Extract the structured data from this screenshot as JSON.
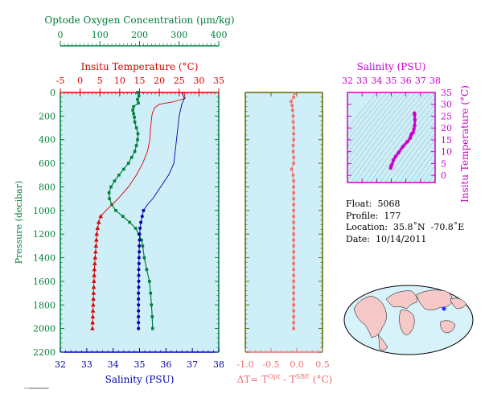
{
  "colors": {
    "oxygen": "#00803a",
    "temperature": "#dd0000",
    "salinity": "#0000aa",
    "delta": "#f07070",
    "inset": "#cc00cc",
    "panel_bg": "#cfeff8",
    "delta_axis": "#666600"
  },
  "chart_data": [
    {
      "type": "line",
      "panel": "profiles",
      "ylabel": "Pressure (decibar)",
      "ylim": [
        2200,
        0
      ],
      "yticks": [
        "0",
        "200",
        "400",
        "600",
        "800",
        "1000",
        "1200",
        "1400",
        "1600",
        "1800",
        "2000",
        "2200"
      ],
      "axes": {
        "oxygen": {
          "label": "Optode Oxygen Concentration (μm/kg)",
          "lim": [
            0,
            400
          ],
          "ticks": [
            "0",
            "100",
            "200",
            "300",
            "400"
          ]
        },
        "temperature": {
          "label": "Insitu Temperature (°C)",
          "lim": [
            -5,
            35
          ],
          "ticks": [
            "-5",
            "0",
            "5",
            "10",
            "15",
            "20",
            "25",
            "30",
            "35"
          ]
        },
        "salinity": {
          "label": "Salinity (PSU)",
          "lim": [
            32,
            38
          ],
          "ticks": [
            "32",
            "33",
            "34",
            "35",
            "36",
            "37",
            "38"
          ]
        }
      },
      "series": [
        {
          "key": "oxygen",
          "axis": "oxygen",
          "p": [
            0,
            30,
            60,
            90,
            120,
            150,
            180,
            210,
            250,
            300,
            350,
            400,
            450,
            500,
            550,
            600,
            650,
            700,
            750,
            800,
            850,
            900,
            950,
            1000,
            1050,
            1100,
            1150,
            1200,
            1250,
            1300,
            1400,
            1500,
            1600,
            1700,
            1800,
            1900,
            2000
          ],
          "values": [
            195,
            198,
            195,
            197,
            185,
            183,
            185,
            187,
            188,
            192,
            196,
            195,
            192,
            188,
            180,
            172,
            160,
            148,
            137,
            128,
            123,
            124,
            130,
            140,
            158,
            175,
            190,
            198,
            205,
            208,
            212,
            218,
            225,
            228,
            230,
            232,
            233
          ]
        },
        {
          "key": "temperature",
          "axis": "temperature",
          "p": [
            0,
            50,
            80,
            100,
            130,
            170,
            200,
            300,
            400,
            500,
            600,
            700,
            800,
            900,
            1000,
            1050,
            1100,
            1200,
            1300,
            1400,
            1500,
            1600,
            1700,
            1800,
            1900,
            2000
          ],
          "values": [
            26.3,
            26.5,
            23.5,
            20.0,
            18.8,
            18.3,
            18.1,
            17.8,
            17.6,
            17.0,
            15.8,
            14.2,
            12.2,
            9.6,
            6.5,
            5.2,
            4.7,
            4.2,
            4.0,
            3.8,
            3.6,
            3.5,
            3.4,
            3.3,
            3.2,
            3.1
          ]
        },
        {
          "key": "temperature_markers",
          "axis": "temperature",
          "markers_only": true,
          "p": [
            1050,
            1100,
            1150,
            1200,
            1250,
            1300,
            1350,
            1400,
            1450,
            1500,
            1550,
            1600,
            1650,
            1700,
            1750,
            1800,
            1850,
            1900,
            1950,
            2000
          ],
          "values": [
            5.2,
            4.7,
            4.4,
            4.2,
            4.1,
            4.0,
            3.9,
            3.8,
            3.7,
            3.6,
            3.55,
            3.5,
            3.45,
            3.4,
            3.35,
            3.3,
            3.25,
            3.2,
            3.15,
            3.1
          ]
        },
        {
          "key": "salinity",
          "axis": "salinity",
          "p": [
            0,
            50,
            100,
            200,
            300,
            400,
            500,
            600,
            700,
            800,
            900,
            950,
            1000,
            1100,
            1200,
            1300,
            1400,
            1500,
            1600,
            1700,
            1800,
            1900,
            2000
          ],
          "values": [
            36.6,
            36.7,
            36.6,
            36.5,
            36.45,
            36.4,
            36.35,
            36.3,
            36.1,
            35.8,
            35.5,
            35.3,
            35.15,
            35.05,
            35.0,
            34.99,
            34.98,
            34.97,
            34.97,
            34.96,
            34.96,
            34.96,
            34.96
          ]
        },
        {
          "key": "salinity_markers",
          "axis": "salinity",
          "markers_only": true,
          "p": [
            1000,
            1050,
            1100,
            1150,
            1200,
            1250,
            1300,
            1350,
            1400,
            1450,
            1500,
            1550,
            1600,
            1650,
            1700,
            1750,
            1800,
            1850,
            1900,
            1950,
            2000
          ],
          "values": [
            35.15,
            35.1,
            35.05,
            35.02,
            35.0,
            35.0,
            34.99,
            34.99,
            34.98,
            34.98,
            34.97,
            34.97,
            34.97,
            34.97,
            34.96,
            34.96,
            34.96,
            34.96,
            34.96,
            34.96,
            34.96
          ]
        }
      ]
    },
    {
      "type": "scatter",
      "panel": "delta",
      "xlabel_parts": [
        "ΔT= T",
        "Opt",
        " - T",
        "SBE",
        " (°C)"
      ],
      "xlim": [
        -1.0,
        0.5
      ],
      "xticks": [
        "-1.0",
        "-0.5",
        "0.0",
        "0.5"
      ],
      "ylim": [
        2200,
        0
      ],
      "p": [
        5,
        40,
        75,
        110,
        150,
        200,
        250,
        300,
        350,
        400,
        450,
        500,
        550,
        600,
        650,
        700,
        750,
        800,
        850,
        900,
        950,
        1000,
        1050,
        1100,
        1150,
        1200,
        1250,
        1300,
        1350,
        1400,
        1450,
        1500,
        1550,
        1600,
        1650,
        1700,
        1750,
        1800,
        1850,
        1900,
        1950,
        2000
      ],
      "values": [
        -0.04,
        -0.06,
        -0.11,
        -0.09,
        -0.08,
        -0.07,
        -0.07,
        -0.06,
        -0.06,
        -0.06,
        -0.07,
        -0.07,
        -0.06,
        -0.06,
        -0.1,
        -0.07,
        -0.06,
        -0.06,
        -0.06,
        -0.06,
        -0.06,
        -0.06,
        -0.06,
        -0.06,
        -0.06,
        -0.06,
        -0.06,
        -0.06,
        -0.06,
        -0.06,
        -0.06,
        -0.06,
        -0.06,
        -0.06,
        -0.06,
        -0.06,
        -0.06,
        -0.06,
        -0.06,
        -0.06,
        -0.06,
        -0.06
      ]
    },
    {
      "type": "scatter",
      "panel": "ts",
      "xlabel": "Salinity (PSU)",
      "ylabel": "Insitu Temperature (°C)",
      "xlim": [
        32,
        38
      ],
      "ylim": [
        -3,
        35
      ],
      "xticks": [
        "32",
        "33",
        "34",
        "35",
        "36",
        "37",
        "38"
      ],
      "yticks": [
        "0",
        "5",
        "10",
        "15",
        "20",
        "25",
        "30",
        "35"
      ],
      "x": [
        34.96,
        34.97,
        34.99,
        35.05,
        35.15,
        35.3,
        35.5,
        35.8,
        36.1,
        36.3,
        36.35,
        36.4,
        36.45,
        36.5,
        36.55,
        36.6,
        36.62,
        36.6,
        36.58
      ],
      "y": [
        3.1,
        3.5,
        4.0,
        4.7,
        6.5,
        8.0,
        9.6,
        12.2,
        14.2,
        15.8,
        17.0,
        17.6,
        17.8,
        18.2,
        19.5,
        21.0,
        23.5,
        25.5,
        26.3
      ]
    }
  ],
  "info": {
    "float": "Float:  5068",
    "profile": "Profile:  177",
    "location": "Location:  35.8˚N  -70.8˚E",
    "date": "Date:  10/14/2011"
  },
  "footer_note": "7172008000000000"
}
